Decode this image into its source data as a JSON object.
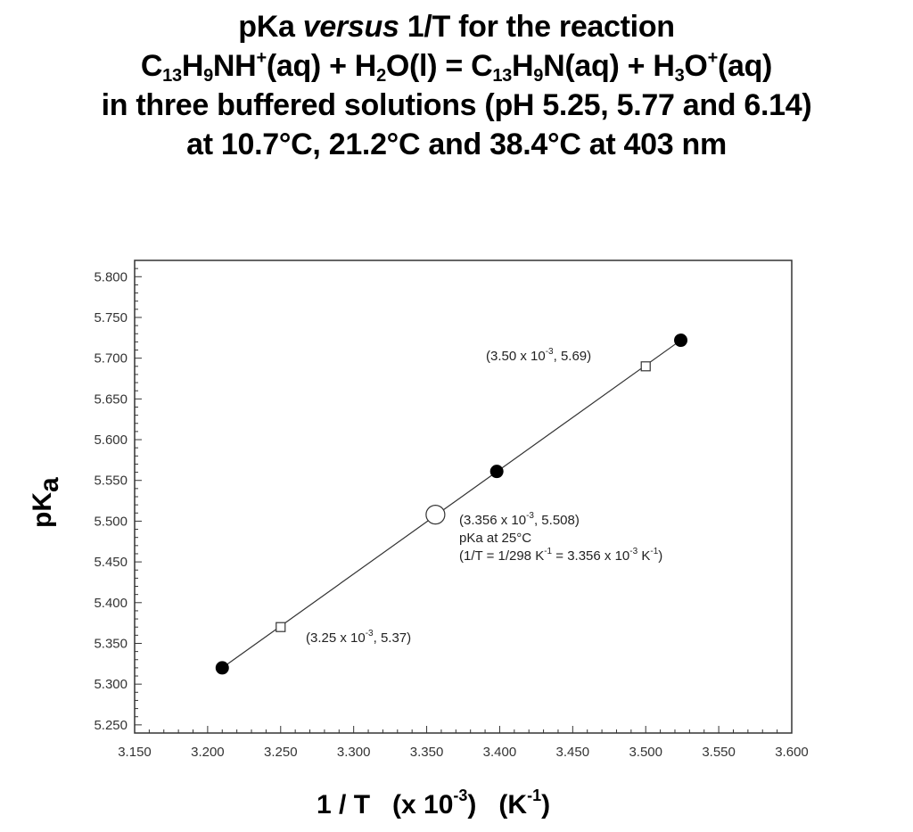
{
  "title": {
    "line1": {
      "pre": "pKa ",
      "italic": "versus",
      "post": " 1/T for the reaction"
    },
    "line2": [
      {
        "t": "C"
      },
      {
        "sub": "13"
      },
      {
        "t": "H"
      },
      {
        "sub": "9"
      },
      {
        "t": "NH"
      },
      {
        "sup": "+"
      },
      {
        "t": "(aq) + H"
      },
      {
        "sub": "2"
      },
      {
        "t": "O(l) = C"
      },
      {
        "sub": "13"
      },
      {
        "t": "H"
      },
      {
        "sub": "9"
      },
      {
        "t": "N(aq) + H"
      },
      {
        "sub": "3"
      },
      {
        "t": "O"
      },
      {
        "sup": "+"
      },
      {
        "t": "(aq)"
      }
    ],
    "line3": "in three buffered solutions (pH 5.25, 5.77 and 6.14)",
    "line4": "at 10.7°C, 21.2°C and 38.4°C at 403 nm"
  },
  "chart_data": {
    "type": "scatter",
    "title": "pKa versus 1/T for the reaction C13H9NH+(aq) + H2O(l) = C13H9N(aq) + H3O+(aq) in three buffered solutions (pH 5.25, 5.77 and 6.14) at 10.7°C, 21.2°C and 38.4°C at 403 nm",
    "xlabel": "1 / T   (x 10^-3)   (K^-1)",
    "ylabel": "pKa",
    "xlim": [
      3.15,
      3.6
    ],
    "ylim": [
      5.24,
      5.82
    ],
    "xticks": [
      "3.150",
      "3.200",
      "3.250",
      "3.300",
      "3.350",
      "3.400",
      "3.450",
      "3.500",
      "3.550",
      "3.600"
    ],
    "yticks": [
      "5.250",
      "5.300",
      "5.350",
      "5.400",
      "5.450",
      "5.500",
      "5.550",
      "5.600",
      "5.650",
      "5.700",
      "5.750",
      "5.800"
    ],
    "x_minor_step": 0.01,
    "y_minor_step": 0.01,
    "grid": false,
    "legend": "none",
    "series": [
      {
        "name": "measured pKa",
        "marker": "filled-circle",
        "x": [
          3.21,
          3.398,
          3.524
        ],
        "y": [
          5.32,
          5.561,
          5.722
        ]
      },
      {
        "name": "linear fit",
        "marker": "line",
        "x": [
          3.21,
          3.524
        ],
        "y": [
          5.32,
          5.722
        ]
      },
      {
        "name": "pKa at 25°C",
        "marker": "open-circle",
        "x": [
          3.356
        ],
        "y": [
          5.508
        ]
      },
      {
        "name": "reference points",
        "marker": "open-square",
        "x": [
          3.25,
          3.5
        ],
        "y": [
          5.37,
          5.69
        ]
      }
    ],
    "annotations": [
      {
        "text": "(3.50 x 10^-3, 5.69)",
        "x": 3.5,
        "y": 5.69
      },
      {
        "text": "(3.356 x 10^-3, 5.508)",
        "x": 3.356,
        "y": 5.508
      },
      {
        "text": "pKa at 25°C",
        "x": 3.356,
        "y": 5.508
      },
      {
        "text": "(1/T = 1/298 K^-1 = 3.356 x 10^-3 K^-1)",
        "x": 3.356,
        "y": 5.508
      },
      {
        "text": "(3.25 x 10^-3, 5.37)",
        "x": 3.25,
        "y": 5.37
      }
    ]
  },
  "annotations_text": {
    "upper_pre": "(3.50 x 10",
    "upper_exp": "-3",
    "upper_post": ", 5.69)",
    "mid1_pre": "(3.356 x 10",
    "mid1_exp": "-3",
    "mid1_post": ", 5.508)",
    "mid2": "pKa at 25°C",
    "mid3_a": "(1/T = 1/298 K",
    "mid3_exp1": "-1",
    "mid3_b": " = 3.356 x 10",
    "mid3_exp2": "-3",
    "mid3_c": " K",
    "mid3_exp3": "-1",
    "mid3_d": ")",
    "lower_pre": "(3.25 x 10",
    "lower_exp": "-3",
    "lower_post": ", 5.37)"
  },
  "axis_text": {
    "ylabel_main": "pK",
    "ylabel_sub": "a",
    "xlabel_a": "1 / T   (x 10",
    "xlabel_exp1": "-3",
    "xlabel_b": ")   (K",
    "xlabel_exp2": "-1",
    "xlabel_c": ")"
  },
  "colors": {
    "frame": "#333333",
    "line": "#333333",
    "marker": "#000000",
    "text": "#000000"
  }
}
